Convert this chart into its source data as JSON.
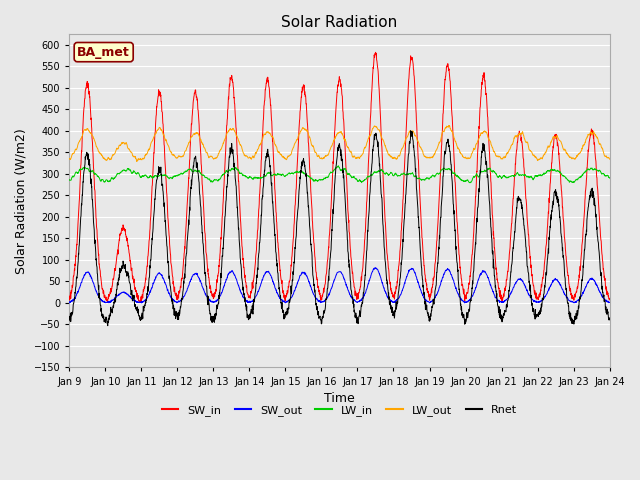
{
  "title": "Solar Radiation",
  "xlabel": "Time",
  "ylabel": "Solar Radiation (W/m2)",
  "ylim": [
    -150,
    625
  ],
  "yticks": [
    -150,
    -100,
    -50,
    0,
    50,
    100,
    150,
    200,
    250,
    300,
    350,
    400,
    450,
    500,
    550,
    600
  ],
  "n_days": 15,
  "annotation_text": "BA_met",
  "annotation_bg": "#FFFFCC",
  "annotation_border": "#8B0000",
  "colors": {
    "SW_in": "#FF0000",
    "SW_out": "#0000FF",
    "LW_in": "#00CC00",
    "LW_out": "#FFA500",
    "Rnet": "#000000"
  },
  "fig_bg": "#E8E8E8",
  "plot_bg": "#E8E8E8",
  "grid_color": "#FFFFFF",
  "title_fontsize": 11,
  "label_fontsize": 9,
  "tick_fontsize": 7,
  "legend_fontsize": 8
}
